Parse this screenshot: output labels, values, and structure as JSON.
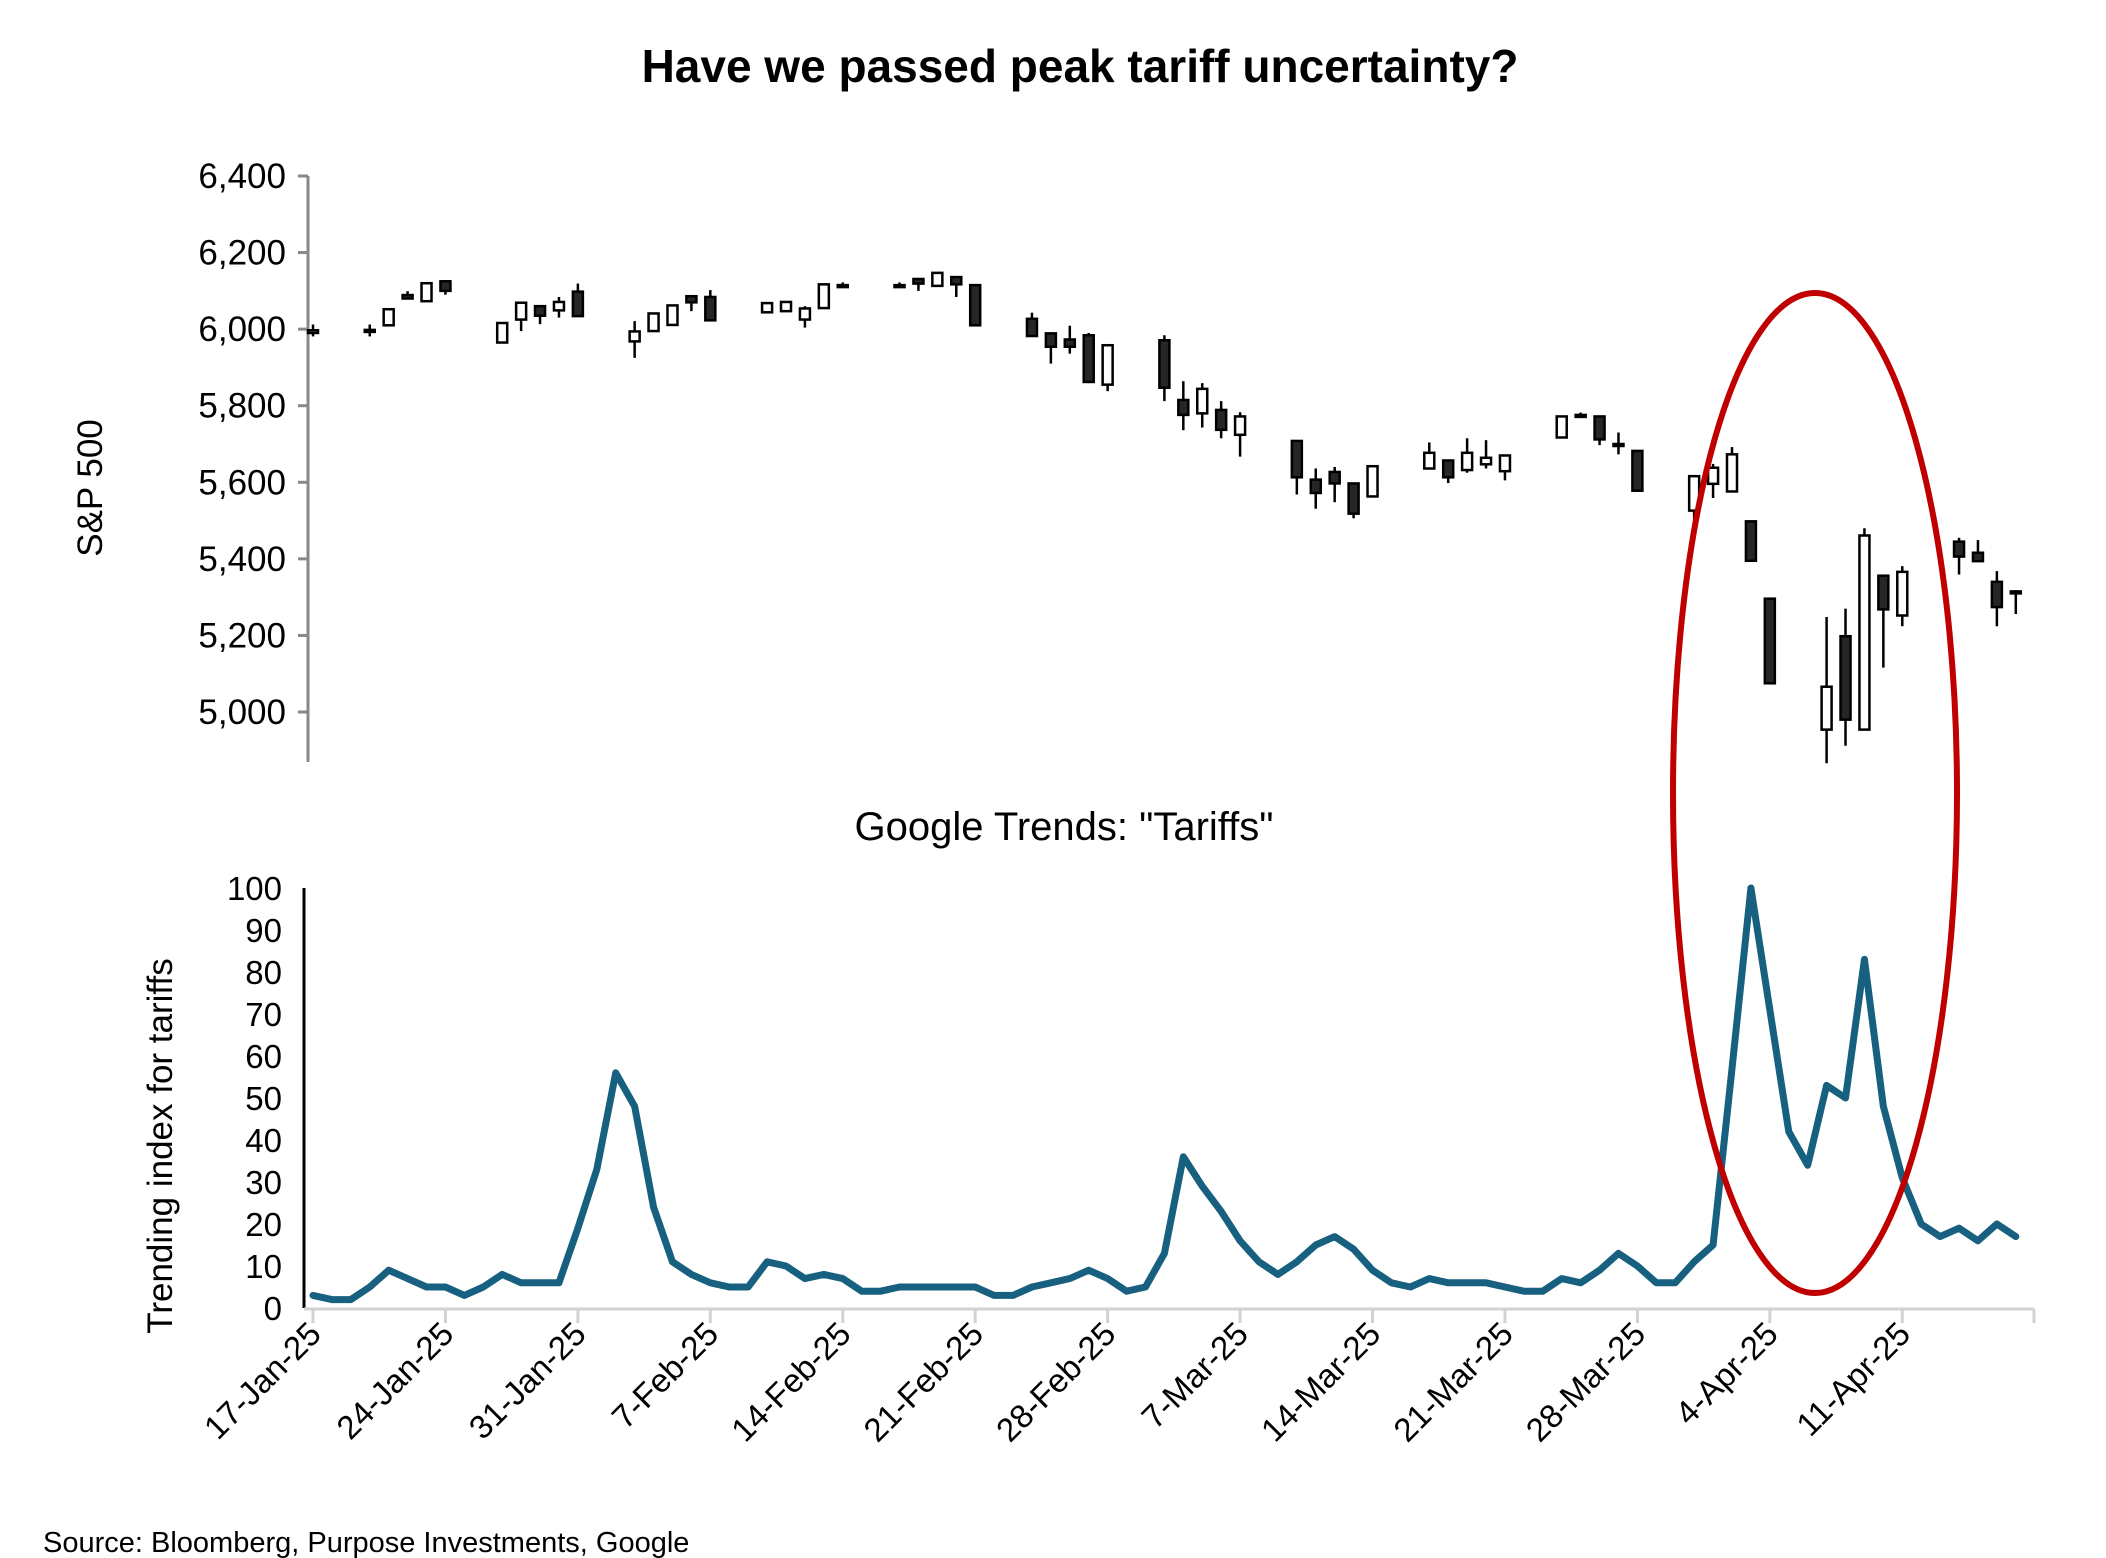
{
  "title": "Have we passed peak tariff uncertainty?",
  "source": "Source: Bloomberg, Purpose Investments, Google",
  "colors": {
    "line": "#17607F",
    "down_candle": "#262626",
    "up_candle": "#FFFFFF",
    "annotation": "#C00000",
    "axis": "#888888",
    "xaxis": "#D0D3D6"
  },
  "chart_data": [
    {
      "type": "candlestick",
      "ylabel": "S&P 500",
      "ylim": [
        4900,
        6400
      ],
      "yticks": [
        "6,400",
        "6,200",
        "6,000",
        "5,800",
        "5,600",
        "5,400",
        "5,200",
        "5,000"
      ],
      "ytick_values": [
        6400,
        6200,
        6000,
        5800,
        5600,
        5400,
        5200,
        5000
      ],
      "grid": false,
      "candles_fields": [
        "date",
        "open",
        "high",
        "low",
        "close"
      ],
      "candles": [
        [
          "2025-01-17",
          5990,
          6012,
          5981,
          5997
        ],
        [
          "2025-01-20",
          5995,
          6012,
          5981,
          5998
        ],
        [
          "2025-01-21",
          6010,
          6052,
          6010,
          6052
        ],
        [
          "2025-01-22",
          6089,
          6099,
          6078,
          6080
        ],
        [
          "2025-01-23",
          6073,
          6120,
          6073,
          6120
        ],
        [
          "2025-01-24",
          6125,
          6128,
          6090,
          6100
        ],
        [
          "2025-01-27",
          5965,
          6016,
          5965,
          6016
        ],
        [
          "2025-01-28",
          6025,
          6069,
          5995,
          6069
        ],
        [
          "2025-01-29",
          6060,
          6060,
          6013,
          6035
        ],
        [
          "2025-01-30",
          6049,
          6084,
          6030,
          6071
        ],
        [
          "2025-01-31",
          6098,
          6119,
          6034,
          6034
        ],
        [
          "2025-02-03",
          5968,
          6021,
          5925,
          5994
        ],
        [
          "2025-02-04",
          5995,
          6041,
          5995,
          6041
        ],
        [
          "2025-02-05",
          6011,
          6062,
          6011,
          6062
        ],
        [
          "2025-02-06",
          6086,
          6086,
          6047,
          6070
        ],
        [
          "2025-02-07",
          6084,
          6102,
          6023,
          6023
        ],
        [
          "2025-02-10",
          6044,
          6068,
          6044,
          6068
        ],
        [
          "2025-02-11",
          6047,
          6071,
          6047,
          6071
        ],
        [
          "2025-02-12",
          6025,
          6060,
          6004,
          6054
        ],
        [
          "2025-02-13",
          6055,
          6117,
          6055,
          6117
        ],
        [
          "2025-02-14",
          6114,
          6122,
          6112,
          6115
        ],
        [
          "2025-02-17",
          6114,
          6122,
          6112,
          6115
        ],
        [
          "2025-02-18",
          6131,
          6131,
          6100,
          6119
        ],
        [
          "2025-02-19",
          6113,
          6147,
          6113,
          6147
        ],
        [
          "2025-02-20",
          6136,
          6136,
          6084,
          6117
        ],
        [
          "2025-02-21",
          6115,
          6115,
          6010,
          6010
        ],
        [
          "2025-02-24",
          6027,
          6043,
          5982,
          5982
        ],
        [
          "2025-02-25",
          5989,
          5989,
          5910,
          5954
        ],
        [
          "2025-02-26",
          5973,
          6009,
          5936,
          5954
        ],
        [
          "2025-02-27",
          5984,
          5990,
          5862,
          5862
        ],
        [
          "2025-02-28",
          5855,
          5958,
          5838,
          5958
        ],
        [
          "2025-03-03",
          5971,
          5984,
          5812,
          5847
        ],
        [
          "2025-03-04",
          5815,
          5864,
          5736,
          5776
        ],
        [
          "2025-03-05",
          5780,
          5859,
          5743,
          5844
        ],
        [
          "2025-03-06",
          5789,
          5812,
          5715,
          5737
        ],
        [
          "2025-03-07",
          5724,
          5783,
          5667,
          5772
        ],
        [
          "2025-03-10",
          5708,
          5708,
          5568,
          5613
        ],
        [
          "2025-03-11",
          5607,
          5636,
          5531,
          5572
        ],
        [
          "2025-03-12",
          5627,
          5640,
          5548,
          5597
        ],
        [
          "2025-03-13",
          5597,
          5597,
          5506,
          5518
        ],
        [
          "2025-03-14",
          5563,
          5642,
          5563,
          5642
        ],
        [
          "2025-03-17",
          5636,
          5704,
          5636,
          5677
        ],
        [
          "2025-03-18",
          5657,
          5657,
          5598,
          5613
        ],
        [
          "2025-03-19",
          5632,
          5715,
          5625,
          5677
        ],
        [
          "2025-03-20",
          5647,
          5710,
          5636,
          5664
        ],
        [
          "2025-03-21",
          5629,
          5670,
          5605,
          5670
        ],
        [
          "2025-03-24",
          5717,
          5772,
          5717,
          5772
        ],
        [
          "2025-03-25",
          5775,
          5782,
          5770,
          5776
        ],
        [
          "2025-03-26",
          5772,
          5772,
          5697,
          5712
        ],
        [
          "2025-03-27",
          5700,
          5730,
          5673,
          5698
        ],
        [
          "2025-03-28",
          5682,
          5682,
          5578,
          5578
        ],
        [
          "2025-03-31",
          5526,
          5616,
          5491,
          5616
        ],
        [
          "2025-04-01",
          5596,
          5648,
          5559,
          5638
        ],
        [
          "2025-04-02",
          5576,
          5692,
          5576,
          5673
        ],
        [
          "2025-04-03",
          5498,
          5498,
          5395,
          5395
        ],
        [
          "2025-04-04",
          5296,
          5296,
          5075,
          5075
        ],
        [
          "2025-04-07",
          4954,
          5248,
          4866,
          5066
        ],
        [
          "2025-04-08",
          5198,
          5270,
          4912,
          4980
        ],
        [
          "2025-04-09",
          4954,
          5480,
          4954,
          5461
        ],
        [
          "2025-04-10",
          5356,
          5356,
          5116,
          5268
        ],
        [
          "2025-04-11",
          5252,
          5381,
          5224,
          5366
        ],
        [
          "2025-04-14",
          5445,
          5455,
          5359,
          5406
        ],
        [
          "2025-04-15",
          5416,
          5449,
          5394,
          5394
        ],
        [
          "2025-04-16",
          5340,
          5368,
          5224,
          5274
        ],
        [
          "2025-04-17",
          5315,
          5318,
          5256,
          5310
        ]
      ]
    },
    {
      "type": "line",
      "title": "Google Trends: \"Tariffs\"",
      "ylabel": "Trending index for tariffs",
      "ylim": [
        0,
        100
      ],
      "yticks": [
        "100",
        "90",
        "80",
        "70",
        "60",
        "50",
        "40",
        "30",
        "20",
        "10",
        "0"
      ],
      "ytick_values": [
        100,
        90,
        80,
        70,
        60,
        50,
        40,
        30,
        20,
        10,
        0
      ],
      "xlim": [
        "2025-01-17",
        "2025-04-17"
      ],
      "xticks": [
        "17-Jan-25",
        "24-Jan-25",
        "31-Jan-25",
        "7-Feb-25",
        "14-Feb-25",
        "21-Feb-25",
        "28-Feb-25",
        "7-Mar-25",
        "14-Mar-25",
        "21-Mar-25",
        "28-Mar-25",
        "4-Apr-25",
        "11-Apr-25"
      ],
      "xtick_dates": [
        "2025-01-17",
        "2025-01-24",
        "2025-01-31",
        "2025-02-07",
        "2025-02-14",
        "2025-02-21",
        "2025-02-28",
        "2025-03-07",
        "2025-03-14",
        "2025-03-21",
        "2025-03-28",
        "2025-04-04",
        "2025-04-11"
      ],
      "grid": false,
      "x_start": "2025-01-17",
      "x_step": "1 day",
      "values": [
        3,
        2,
        2,
        5,
        9,
        7,
        5,
        5,
        3,
        5,
        8,
        6,
        6,
        6,
        19,
        33,
        56,
        48,
        24,
        11,
        8,
        6,
        5,
        5,
        11,
        10,
        7,
        8,
        7,
        4,
        4,
        5,
        5,
        5,
        5,
        5,
        3,
        3,
        5,
        6,
        7,
        9,
        7,
        4,
        5,
        13,
        36,
        29,
        23,
        16,
        11,
        8,
        11,
        15,
        17,
        14,
        9,
        6,
        5,
        7,
        6,
        6,
        6,
        5,
        4,
        4,
        7,
        6,
        9,
        13,
        10,
        6,
        6,
        11,
        15,
        57,
        100,
        71,
        42,
        34,
        53,
        50,
        83,
        48,
        31,
        20,
        17,
        19,
        16,
        20,
        17
      ]
    }
  ],
  "annotation": {
    "shape": "ellipse",
    "color": "#C00000",
    "spans": [
      "2025-04-02",
      "2025-04-15"
    ]
  }
}
